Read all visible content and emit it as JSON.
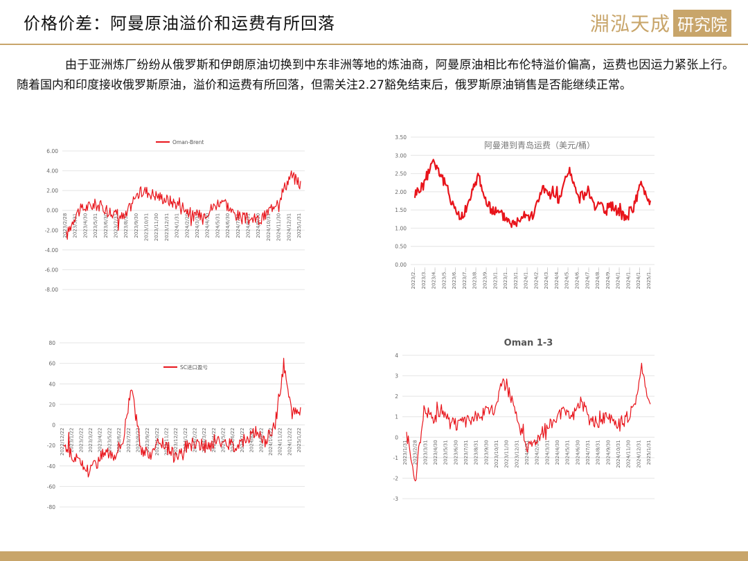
{
  "header": {
    "title": "价格价差：阿曼原油溢价和运费有所回落",
    "logo_text": "淵泓天成",
    "logo_badge": "研究院"
  },
  "body_text": "由于亚洲炼厂纷纷从俄罗斯和伊朗原油切换到中东非洲等地的炼油商，阿曼原油相比布伦特溢价偏高，运费也因运力紧张上行。随着国内和印度接收俄罗斯原油，溢价和运费有所回落，但需关注2.27豁免结束后，俄罗斯原油销售是否能继续正常。",
  "colors": {
    "accent": "#c8a56a",
    "series": "#e8141b"
  },
  "chart_data": [
    {
      "type": "line",
      "title": "",
      "legend": "Oman-Brent",
      "legend_position": "top",
      "ylim": [
        -8,
        6
      ],
      "yticks": [
        "-8.00",
        "-6.00",
        "-4.00",
        "-2.00",
        "0.00",
        "2.00",
        "4.00",
        "6.00"
      ],
      "xticks": [
        "2023/2/28",
        "2023/3/31",
        "2023/4/30",
        "2023/5/31",
        "2023/6/30",
        "2023/7/31",
        "2023/8/31",
        "2023/9/30",
        "2023/10/31",
        "2023/11/30",
        "2023/12/31",
        "2024/1/31",
        "2024/2/29",
        "2024/3/31",
        "2024/4/30",
        "2024/5/31",
        "2024/6/30",
        "2024/7/31",
        "2024/8/31",
        "2024/9/30",
        "2024/10/31",
        "2024/11/30",
        "2024/12/31",
        "2025/1/31"
      ],
      "series": [
        {
          "name": "Oman-Brent",
          "values": [
            -2.6,
            -0.2,
            0.3,
            0.6,
            0.2,
            -0.4,
            -0.8,
            1.4,
            2.0,
            1.6,
            1.2,
            0.8,
            0.4,
            -0.6,
            -0.4,
            0.3,
            1.2,
            -0.2,
            -0.8,
            -0.9,
            -1.0,
            0.3,
            1.6,
            3.6,
            2.6
          ]
        }
      ]
    },
    {
      "type": "line",
      "title": "阿曼港到青岛运费（美元/桶）",
      "ylim": [
        0,
        3.5
      ],
      "yticks": [
        "0.00",
        "0.50",
        "1.00",
        "1.50",
        "2.00",
        "2.50",
        "3.00",
        "3.50"
      ],
      "xticks": [
        "2023/2...",
        "2023/3...",
        "2023/4...",
        "2023/5...",
        "2023/6...",
        "2023/7...",
        "2023/8...",
        "2023/9...",
        "2023/1...",
        "2023/1...",
        "2023/1...",
        "2024/1...",
        "2024/2...",
        "2024/3...",
        "2024/4...",
        "2024/5...",
        "2024/6...",
        "2024/7...",
        "2024/8...",
        "2024/9...",
        "2024/1...",
        "2024/1...",
        "2024/1...",
        "2025/1..."
      ],
      "series": [
        {
          "name": "",
          "values": [
            1.95,
            2.2,
            2.9,
            2.4,
            1.8,
            1.25,
            1.7,
            2.5,
            1.6,
            1.45,
            1.3,
            1.1,
            1.45,
            1.3,
            2.1,
            1.9,
            1.75,
            2.65,
            1.8,
            2.0,
            1.6,
            1.5,
            1.6,
            1.3,
            1.5,
            2.2,
            1.7
          ]
        }
      ]
    },
    {
      "type": "line",
      "title": "",
      "legend": "SC进口盈亏",
      "legend_position": "upper-left",
      "ylim": [
        -80,
        80
      ],
      "yticks": [
        "-80",
        "-60",
        "-40",
        "-20",
        "0",
        "20",
        "40",
        "60",
        "80"
      ],
      "xticks": [
        "2022/12/22",
        "2023/1/22",
        "2023/2/22",
        "2023/3/22",
        "2023/4/22",
        "2023/5/22",
        "2023/6/22",
        "2023/7/22",
        "2023/8/22",
        "2023/9/22",
        "2023/10/22",
        "2023/11/22",
        "2023/12/22",
        "2024/1/22",
        "2024/2/22",
        "2024/3/22",
        "2024/4/22",
        "2024/5/22",
        "2024/6/22",
        "2024/7/22",
        "2024/8/22",
        "2024/9/22",
        "2024/10/22",
        "2024/11/22",
        "2024/12/22",
        "2025/1/22"
      ],
      "series": [
        {
          "name": "SC进口盈亏",
          "values": [
            -18,
            -30,
            -38,
            -45,
            -35,
            -25,
            -28,
            -15,
            40,
            -20,
            -30,
            -15,
            -20,
            -30,
            -25,
            -18,
            -20,
            -22,
            -15,
            -18,
            -20,
            -16,
            -10,
            -8,
            -15,
            0,
            60,
            10,
            15
          ]
        }
      ]
    },
    {
      "type": "line",
      "title": "Oman 1-3",
      "ylim": [
        -3,
        4
      ],
      "yticks": [
        "-3",
        "-2",
        "-1",
        "0",
        "1",
        "2",
        "3",
        "4"
      ],
      "xticks": [
        "2023/1/31",
        "2023/2/28",
        "2023/3/31",
        "2023/4/30",
        "2023/5/31",
        "2023/6/30",
        "2023/7/31",
        "2023/8/31",
        "2023/9/30",
        "2023/10/31",
        "2023/11/30",
        "2023/12/31",
        "2024/1/31",
        "2024/2/29",
        "2024/3/31",
        "2024/4/30",
        "2024/5/31",
        "2024/6/30",
        "2024/7/31",
        "2024/8/31",
        "2024/9/30",
        "2024/10/31",
        "2024/11/30",
        "2024/12/31",
        "2025/1/31"
      ],
      "series": [
        {
          "name": "",
          "values": [
            0.2,
            -2.2,
            1.5,
            0.9,
            1.3,
            0.7,
            0.6,
            0.8,
            1.0,
            1.2,
            1.3,
            2.8,
            2.0,
            0.3,
            -0.5,
            0.0,
            0.4,
            0.9,
            1.2,
            1.0,
            1.8,
            0.9,
            0.7,
            1.0,
            0.6,
            0.8,
            1.3,
            3.3,
            1.5
          ]
        }
      ]
    }
  ]
}
